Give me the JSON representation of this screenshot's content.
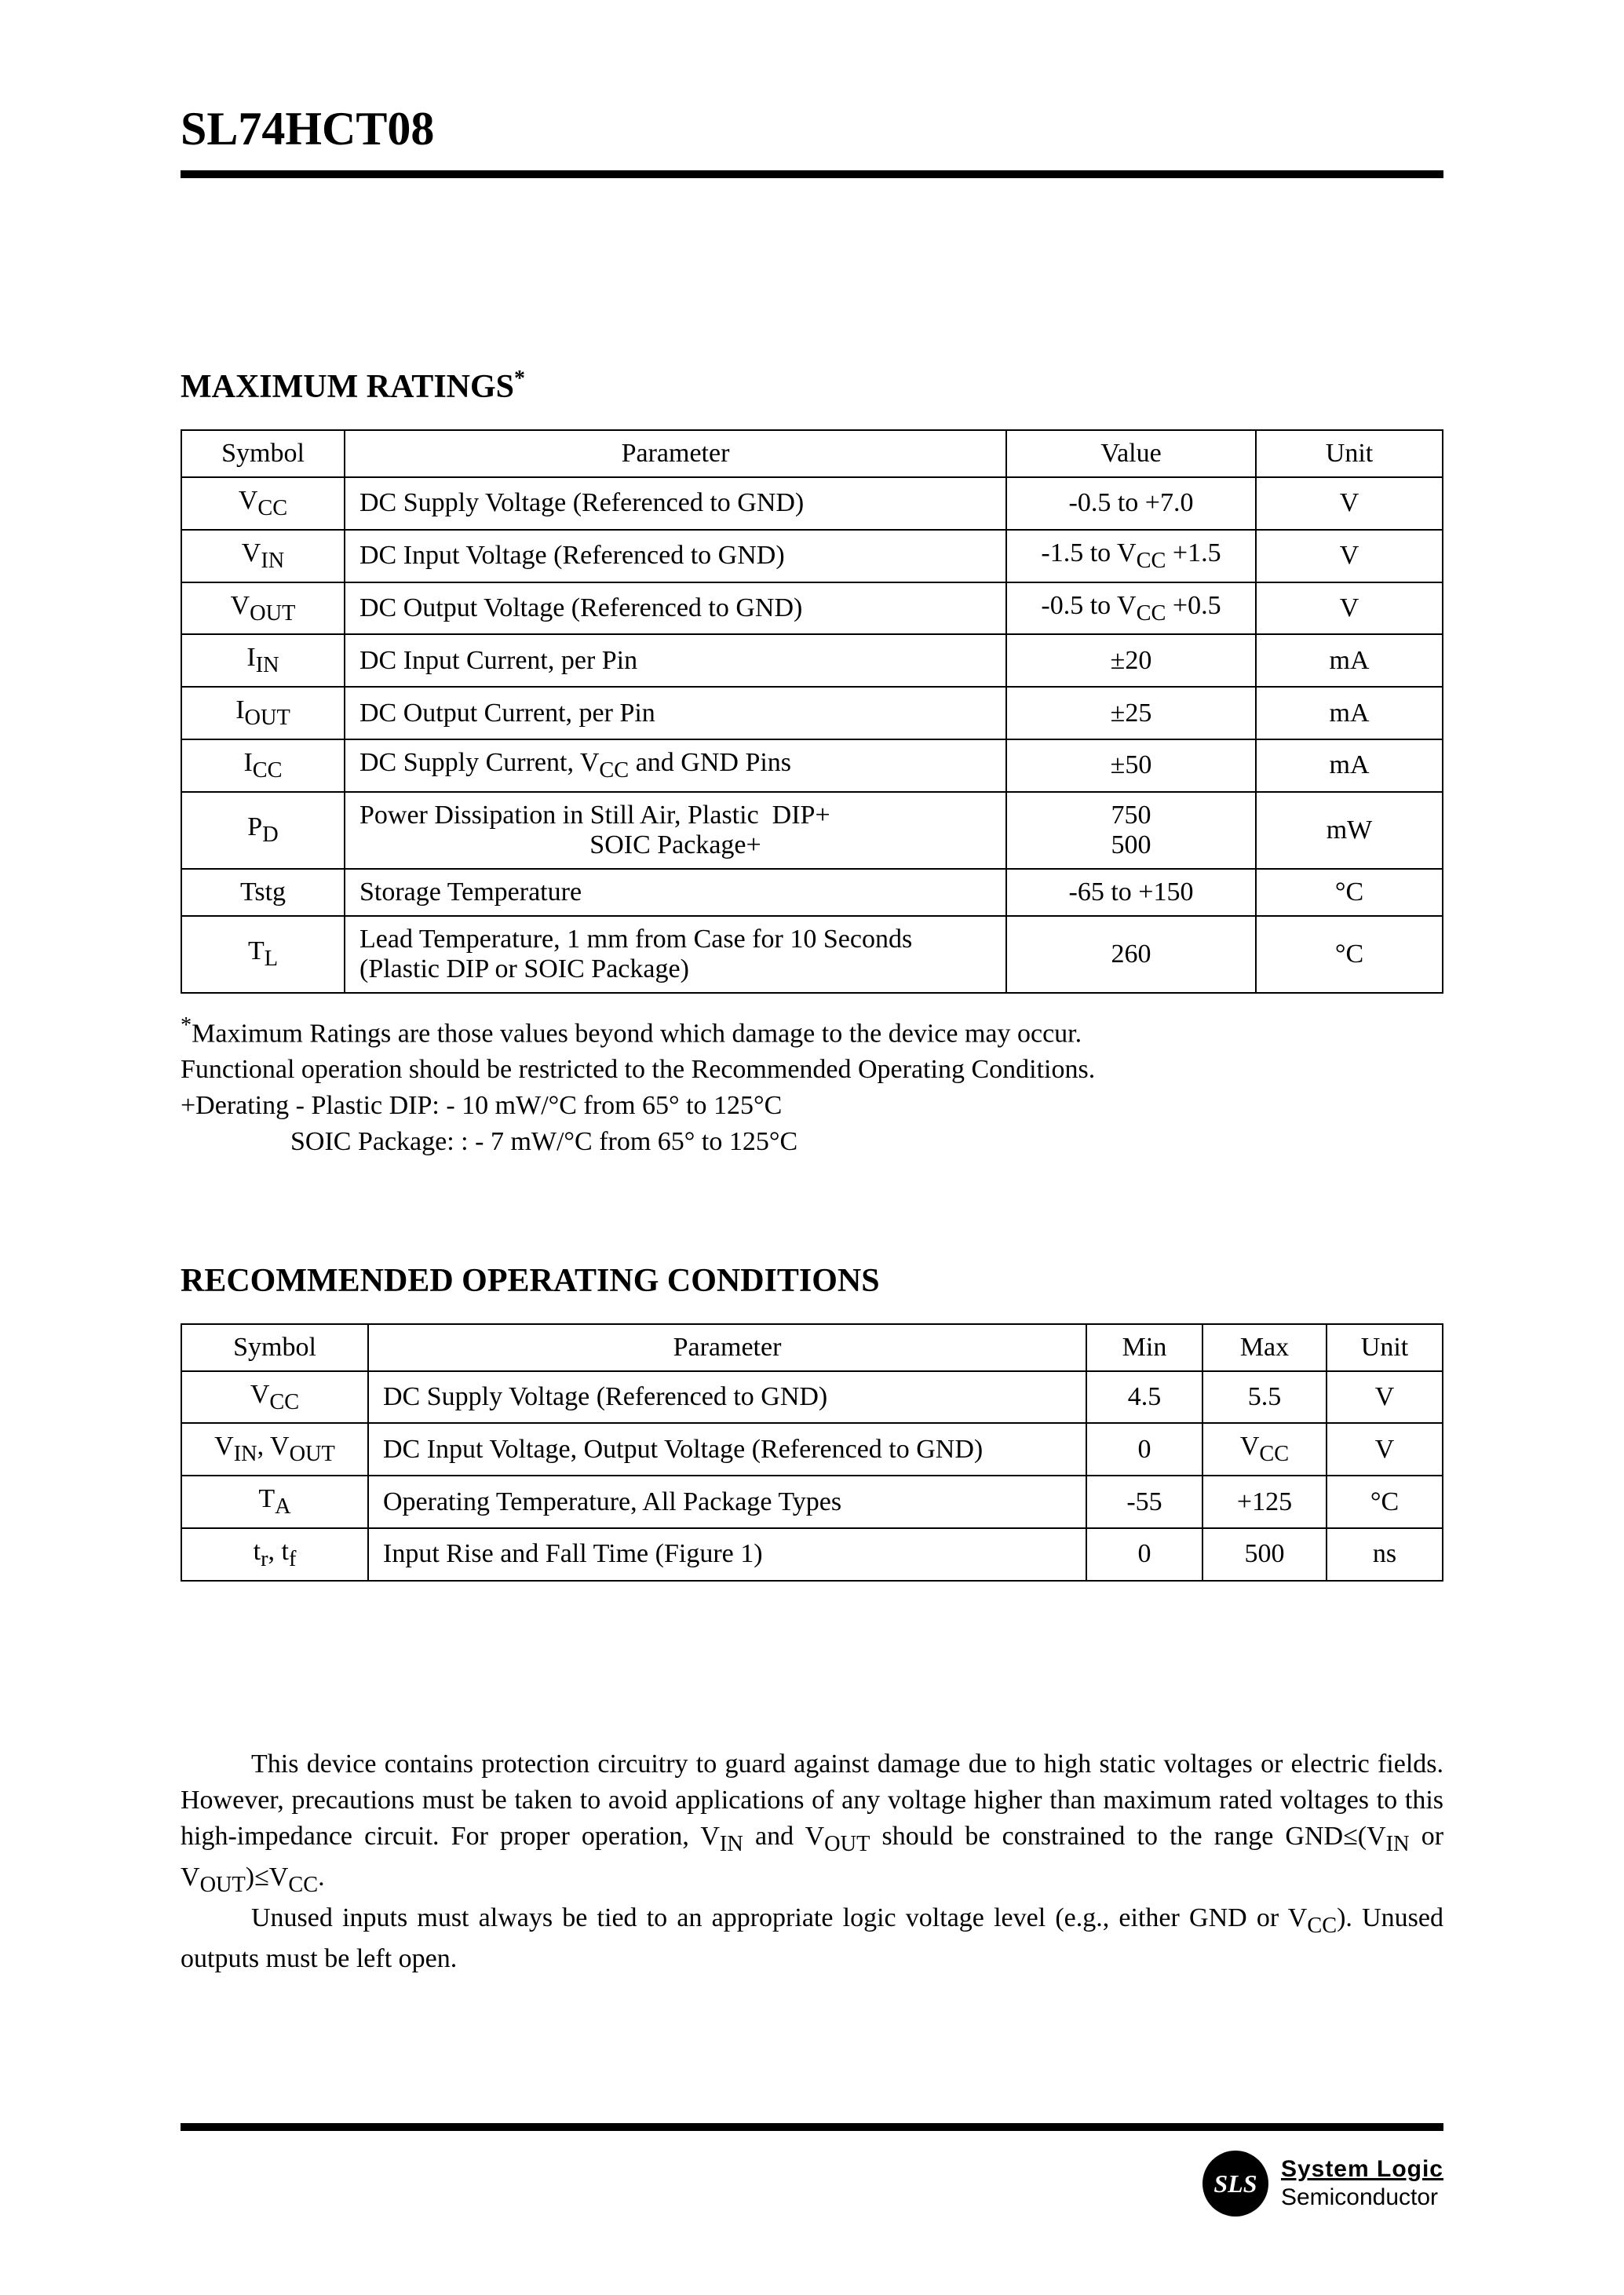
{
  "header": {
    "part_number": "SL74HCT08"
  },
  "max_ratings": {
    "title": "MAXIMUM RATINGS",
    "asterisk": "*",
    "columns": [
      "Symbol",
      "Parameter",
      "Value",
      "Unit"
    ],
    "rows": [
      {
        "symbol_html": "V<sub>CC</sub>",
        "param": "DC Supply Voltage (Referenced to GND)",
        "value_html": "-0.5 to +7.0",
        "unit": "V"
      },
      {
        "symbol_html": "V<sub>IN</sub>",
        "param": "DC Input Voltage (Referenced to GND)",
        "value_html": "-1.5 to V<sub>CC</sub> +1.5",
        "unit": "V"
      },
      {
        "symbol_html": "V<sub>OUT</sub>",
        "param": "DC Output Voltage (Referenced to GND)",
        "value_html": "-0.5 to V<sub>CC</sub> +0.5",
        "unit": "V"
      },
      {
        "symbol_html": "I<sub>IN</sub>",
        "param": "DC Input Current, per Pin",
        "value_html": "±20",
        "unit": "mA"
      },
      {
        "symbol_html": "I<sub>OUT</sub>",
        "param": "DC Output Current, per Pin",
        "value_html": "±25",
        "unit": "mA"
      },
      {
        "symbol_html": "I<sub>CC</sub>",
        "param_html": "DC Supply Current, V<sub>CC</sub> and GND Pins",
        "value_html": "±50",
        "unit": "mA"
      },
      {
        "symbol_html": "P<sub>D</sub>",
        "param_html": "Power Dissipation in Still Air, Plastic&nbsp;&nbsp;DIP+<br><span style='display:inline-block;width:100%;text-align:center;'>SOIC Package+</span>",
        "value_html": "750<br>500",
        "unit": "mW"
      },
      {
        "symbol_html": "Tstg",
        "param": "Storage Temperature",
        "value_html": "-65 to +150",
        "unit": "°C"
      },
      {
        "symbol_html": "T<sub>L</sub>",
        "param": "Lead Temperature, 1 mm from Case for 10 Seconds (Plastic DIP or SOIC Package)",
        "value_html": "260",
        "unit": "°C"
      }
    ],
    "footnotes": {
      "star_html": "<sup>*</sup>Maximum Ratings are those values beyond which damage to the device may occur.",
      "line2": "Functional operation should be restricted to the Recommended Operating Conditions.",
      "plus_line1": "+Derating - Plastic DIP: - 10 mW/°C from 65° to 125°C",
      "plus_line2": "SOIC Package: : - 7 mW/°C from 65° to 125°C"
    }
  },
  "rec_cond": {
    "title": "RECOMMENDED OPERATING CONDITIONS",
    "columns": [
      "Symbol",
      "Parameter",
      "Min",
      "Max",
      "Unit"
    ],
    "rows": [
      {
        "symbol_html": "V<sub>CC</sub>",
        "param": "DC Supply Voltage (Referenced to GND)",
        "min": "4.5",
        "max": "5.5",
        "unit": "V"
      },
      {
        "symbol_html": "V<sub>IN</sub>, V<sub>OUT</sub>",
        "param": "DC Input Voltage, Output Voltage (Referenced to GND)",
        "min": "0",
        "max_html": "V<sub>CC</sub>",
        "unit": "V"
      },
      {
        "symbol_html": "T<sub>A</sub>",
        "param": "Operating Temperature, All Package Types",
        "min": "-55",
        "max": "+125",
        "unit": "°C"
      },
      {
        "symbol_html": "t<sub>r</sub>, t<sub>f</sub>",
        "param": "Input Rise and Fall Time (Figure 1)",
        "min": "0",
        "max": "500",
        "unit": "ns"
      }
    ]
  },
  "body": {
    "p1_html": "This device contains protection circuitry to guard against damage due to high static voltages or electric fields. However, precautions must be taken to avoid applications of any voltage higher than maximum rated voltages to this high-impedance circuit. For proper operation, V<sub>IN</sub> and V<sub>OUT</sub> should be constrained to the range GND≤(V<sub>IN</sub> or V<sub>OUT</sub>)≤V<sub>CC</sub>.",
    "p2_html": "Unused inputs must always be tied to an appropriate logic voltage level (e.g., either GND or V<sub>CC</sub>). Unused outputs must be left open."
  },
  "footer": {
    "logo_text": "SLS",
    "brand_line1": "System Logic",
    "brand_line2": "Semiconductor"
  }
}
